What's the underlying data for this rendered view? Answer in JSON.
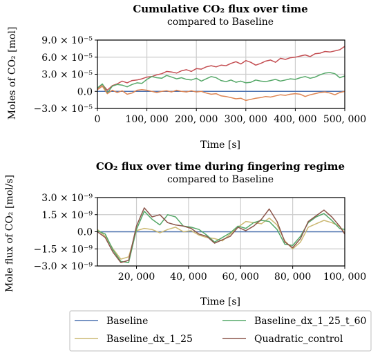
{
  "chart_data": [
    {
      "type": "line",
      "title": "Cumulative CO₂ flux over time",
      "subtitle": "compared to Baseline",
      "xlabel": "Time [s]",
      "ylabel": "Moles of CO₂ [mol]",
      "xlim": [
        0,
        500000
      ],
      "ylim": [
        -3e-05,
        9e-05
      ],
      "xticks": [
        0,
        100000,
        200000,
        300000,
        400000,
        500000
      ],
      "xtick_labels": [
        "0",
        "100, 000",
        "200, 000",
        "300, 000",
        "400, 000",
        "500, 000"
      ],
      "yticks": [
        -3e-05,
        0.0,
        3e-05,
        6e-05,
        9e-05
      ],
      "ytick_labels": [
        "−3.0 × 10⁻⁵",
        "0.0",
        "3.0 × 10⁻⁵",
        "6.0 × 10⁻⁵",
        "9.0 × 10⁻⁵"
      ],
      "grid": true,
      "series": [
        {
          "name": "Baseline",
          "color": "#4c72b0",
          "x": [
            0,
            500000
          ],
          "y": [
            0,
            0
          ]
        },
        {
          "name": "Quadratic_control",
          "color": "#c44e52",
          "x": [
            0,
            10000,
            20000,
            30000,
            40000,
            50000,
            60000,
            70000,
            80000,
            90000,
            100000,
            110000,
            120000,
            130000,
            140000,
            150000,
            160000,
            170000,
            180000,
            190000,
            200000,
            210000,
            220000,
            230000,
            240000,
            250000,
            260000,
            270000,
            280000,
            290000,
            300000,
            310000,
            320000,
            330000,
            340000,
            350000,
            360000,
            370000,
            380000,
            390000,
            400000,
            410000,
            420000,
            430000,
            440000,
            450000,
            460000,
            470000,
            480000,
            490000,
            500000
          ],
          "y": [
            5e-06,
            1.2e-05,
            2e-06,
            1e-05,
            1.3e-05,
            1.8e-05,
            1.5e-05,
            1.9e-05,
            2e-05,
            2.2e-05,
            2.5e-05,
            2.6e-05,
            2.9e-05,
            3.1e-05,
            3.5e-05,
            3.4e-05,
            3.2e-05,
            3.6e-05,
            3.8e-05,
            3.5e-05,
            4e-05,
            3.9e-05,
            4.3e-05,
            4.5e-05,
            4.3e-05,
            4.6e-05,
            4.5e-05,
            4.9e-05,
            5.2e-05,
            4.8e-05,
            5.4e-05,
            5.1e-05,
            4.6e-05,
            4.9e-05,
            5.3e-05,
            5.5e-05,
            5.1e-05,
            5.8e-05,
            5.6e-05,
            5.9e-05,
            6e-05,
            6.2e-05,
            6.4e-05,
            6.1e-05,
            6.6e-05,
            6.7e-05,
            7e-05,
            6.9e-05,
            7.1e-05,
            7.3e-05,
            7.9e-05
          ]
        },
        {
          "name": "Baseline_dx_1_25_t_60",
          "color": "#55a868",
          "x": [
            0,
            10000,
            20000,
            30000,
            40000,
            50000,
            60000,
            70000,
            80000,
            90000,
            100000,
            110000,
            120000,
            130000,
            140000,
            150000,
            160000,
            170000,
            180000,
            190000,
            200000,
            210000,
            220000,
            230000,
            240000,
            250000,
            260000,
            270000,
            280000,
            290000,
            300000,
            310000,
            320000,
            330000,
            340000,
            350000,
            360000,
            370000,
            380000,
            390000,
            400000,
            410000,
            420000,
            430000,
            440000,
            450000,
            460000,
            470000,
            480000,
            490000,
            500000
          ],
          "y": [
            6e-06,
            1.3e-05,
            -3e-06,
            9e-06,
            1.2e-05,
            1.1e-05,
            8e-06,
            1.2e-05,
            1.5e-05,
            1.4e-05,
            2.1e-05,
            2.6e-05,
            2.4e-05,
            2.3e-05,
            2.8e-05,
            2.5e-05,
            2.2e-05,
            2.4e-05,
            2.1e-05,
            2e-05,
            2.3e-05,
            1.8e-05,
            2.2e-05,
            2.6e-05,
            2.4e-05,
            1.9e-05,
            1.7e-05,
            2e-05,
            1.6e-05,
            1.8e-05,
            1.5e-05,
            1.6e-05,
            2e-05,
            1.8e-05,
            1.7e-05,
            1.9e-05,
            2.1e-05,
            1.8e-05,
            2e-05,
            2.2e-05,
            2.1e-05,
            2.4e-05,
            2.6e-05,
            2.3e-05,
            2.5e-05,
            2.9e-05,
            3.2e-05,
            3.3e-05,
            3.1e-05,
            2.4e-05,
            2.7e-05
          ]
        },
        {
          "name": "Baseline_dx_1_25",
          "color": "#dd8452",
          "x": [
            0,
            10000,
            20000,
            30000,
            40000,
            50000,
            60000,
            70000,
            80000,
            90000,
            100000,
            110000,
            120000,
            130000,
            140000,
            150000,
            160000,
            170000,
            180000,
            190000,
            200000,
            210000,
            220000,
            230000,
            240000,
            250000,
            260000,
            270000,
            280000,
            290000,
            300000,
            310000,
            320000,
            330000,
            340000,
            350000,
            360000,
            370000,
            380000,
            390000,
            400000,
            410000,
            420000,
            430000,
            440000,
            450000,
            460000,
            470000,
            480000,
            490000,
            500000
          ],
          "y": [
            3e-06,
            9e-06,
            -4e-06,
            2e-06,
            -2e-06,
            1e-06,
            -5e-06,
            -3e-06,
            2e-06,
            3e-06,
            2e-06,
            0.0,
            -2e-06,
            0.0,
            1e-06,
            -1e-06,
            2e-06,
            0.0,
            -1e-06,
            1e-06,
            -1e-06,
            0.0,
            -3e-06,
            -5e-06,
            -4e-06,
            -8e-06,
            -9e-06,
            -1.1e-05,
            -1.3e-05,
            -1.2e-05,
            -1.6e-05,
            -1.4e-05,
            -1.2e-05,
            -1.1e-05,
            -9e-06,
            -1e-05,
            -8e-06,
            -6e-06,
            -7e-06,
            -5e-06,
            -4e-06,
            -5e-06,
            -9e-06,
            -6e-06,
            -4e-06,
            -2e-06,
            -1e-06,
            -3e-06,
            -6e-06,
            -2e-06,
            0.0
          ]
        }
      ]
    },
    {
      "type": "line",
      "title": "CO₂ flux over time during fingering regime",
      "subtitle": "compared to Baseline",
      "xlabel": "Time [s]",
      "ylabel": "Mole flux of CO₂ [mol/s]",
      "xlim": [
        5000,
        100000
      ],
      "ylim": [
        -3e-09,
        3e-09
      ],
      "xticks": [
        20000,
        40000,
        60000,
        80000,
        100000
      ],
      "xtick_labels": [
        "20, 000",
        "40, 000",
        "60, 000",
        "80, 000",
        "100, 000"
      ],
      "yticks": [
        -3e-09,
        -1.5e-09,
        0.0,
        1.5e-09,
        3e-09
      ],
      "ytick_labels": [
        "−3.0 × 10⁻⁹",
        "−1.5 × 10⁻⁹",
        "0.0",
        "1.5 × 10⁻⁹",
        "3.0 × 10⁻⁹"
      ],
      "grid": true,
      "series": [
        {
          "name": "Baseline",
          "color": "#4c72b0",
          "x": [
            5000,
            100000
          ],
          "y": [
            0,
            0
          ]
        },
        {
          "name": "Baseline_dx_1_25",
          "color": "#ccb974",
          "x": [
            5000,
            8000,
            11000,
            14000,
            17000,
            20000,
            23000,
            26000,
            29000,
            32000,
            35000,
            38000,
            41000,
            44000,
            47000,
            50000,
            53000,
            56000,
            59000,
            62000,
            65000,
            68000,
            71000,
            74000,
            77000,
            80000,
            83000,
            86000,
            89000,
            92000,
            95000,
            98000,
            100000
          ],
          "y": [
            2e-10,
            -4e-10,
            -1.5e-09,
            -2.4e-09,
            -2.2e-09,
            1e-10,
            3e-10,
            2e-10,
            -1e-10,
            2e-10,
            4e-10,
            0.0,
            1e-10,
            -3e-10,
            -5e-10,
            -6e-10,
            -8e-10,
            -2e-10,
            4e-10,
            9e-10,
            8e-10,
            7e-10,
            1.2e-09,
            6e-10,
            -8e-10,
            -1.5e-09,
            -9e-10,
            4e-10,
            7e-10,
            1e-09,
            8e-10,
            5e-10,
            -1e-10
          ]
        },
        {
          "name": "Baseline_dx_1_25_t_60",
          "color": "#55a868",
          "x": [
            5000,
            8000,
            11000,
            14000,
            17000,
            20000,
            23000,
            26000,
            29000,
            32000,
            35000,
            38000,
            41000,
            44000,
            47000,
            50000,
            53000,
            56000,
            59000,
            62000,
            65000,
            68000,
            71000,
            74000,
            77000,
            80000,
            83000,
            86000,
            89000,
            92000,
            95000,
            98000,
            100000
          ],
          "y": [
            1e-10,
            -2e-10,
            -1.6e-09,
            -2.6e-09,
            -2.7e-09,
            2e-10,
            1.8e-09,
            1.1e-09,
            6e-10,
            1.5e-09,
            1.3e-09,
            5e-10,
            4e-10,
            2e-10,
            -3e-10,
            -9e-10,
            -5e-10,
            -1e-10,
            5e-10,
            3e-10,
            8e-10,
            1e-09,
            9e-10,
            2e-10,
            -1.1e-09,
            -1.2e-09,
            -4e-10,
            8e-10,
            1.3e-09,
            1.6e-09,
            1e-09,
            3e-10,
            2e-10
          ]
        },
        {
          "name": "Quadratic_control",
          "color": "#8c564b",
          "x": [
            5000,
            8000,
            11000,
            14000,
            17000,
            20000,
            23000,
            26000,
            29000,
            32000,
            35000,
            38000,
            41000,
            44000,
            47000,
            50000,
            53000,
            56000,
            59000,
            62000,
            65000,
            68000,
            71000,
            74000,
            77000,
            80000,
            83000,
            86000,
            89000,
            92000,
            95000,
            98000,
            100000
          ],
          "y": [
            0.0,
            -5e-10,
            -1.8e-09,
            -2.7e-09,
            -2.5e-09,
            5e-10,
            2.1e-09,
            1.3e-09,
            1.5e-09,
            8e-10,
            6e-10,
            5e-10,
            3e-10,
            -2e-10,
            -4e-10,
            -1e-09,
            -7e-10,
            -4e-10,
            4e-10,
            1e-10,
            5e-10,
            1.1e-09,
            2e-09,
            9e-10,
            -9e-10,
            -1.4e-09,
            -6e-10,
            9e-10,
            1.4e-09,
            1.9e-09,
            1.3e-09,
            5e-10,
            -2e-10
          ]
        }
      ]
    }
  ],
  "legend": {
    "placement": "bottom",
    "entries": [
      {
        "name": "Baseline",
        "color": "#4c72b0"
      },
      {
        "name": "Baseline_dx_1_25_t_60",
        "color": "#55a868"
      },
      {
        "name": "Baseline_dx_1_25",
        "color": "#ccb974"
      },
      {
        "name": "Quadratic_control",
        "color": "#8c564b"
      }
    ]
  }
}
